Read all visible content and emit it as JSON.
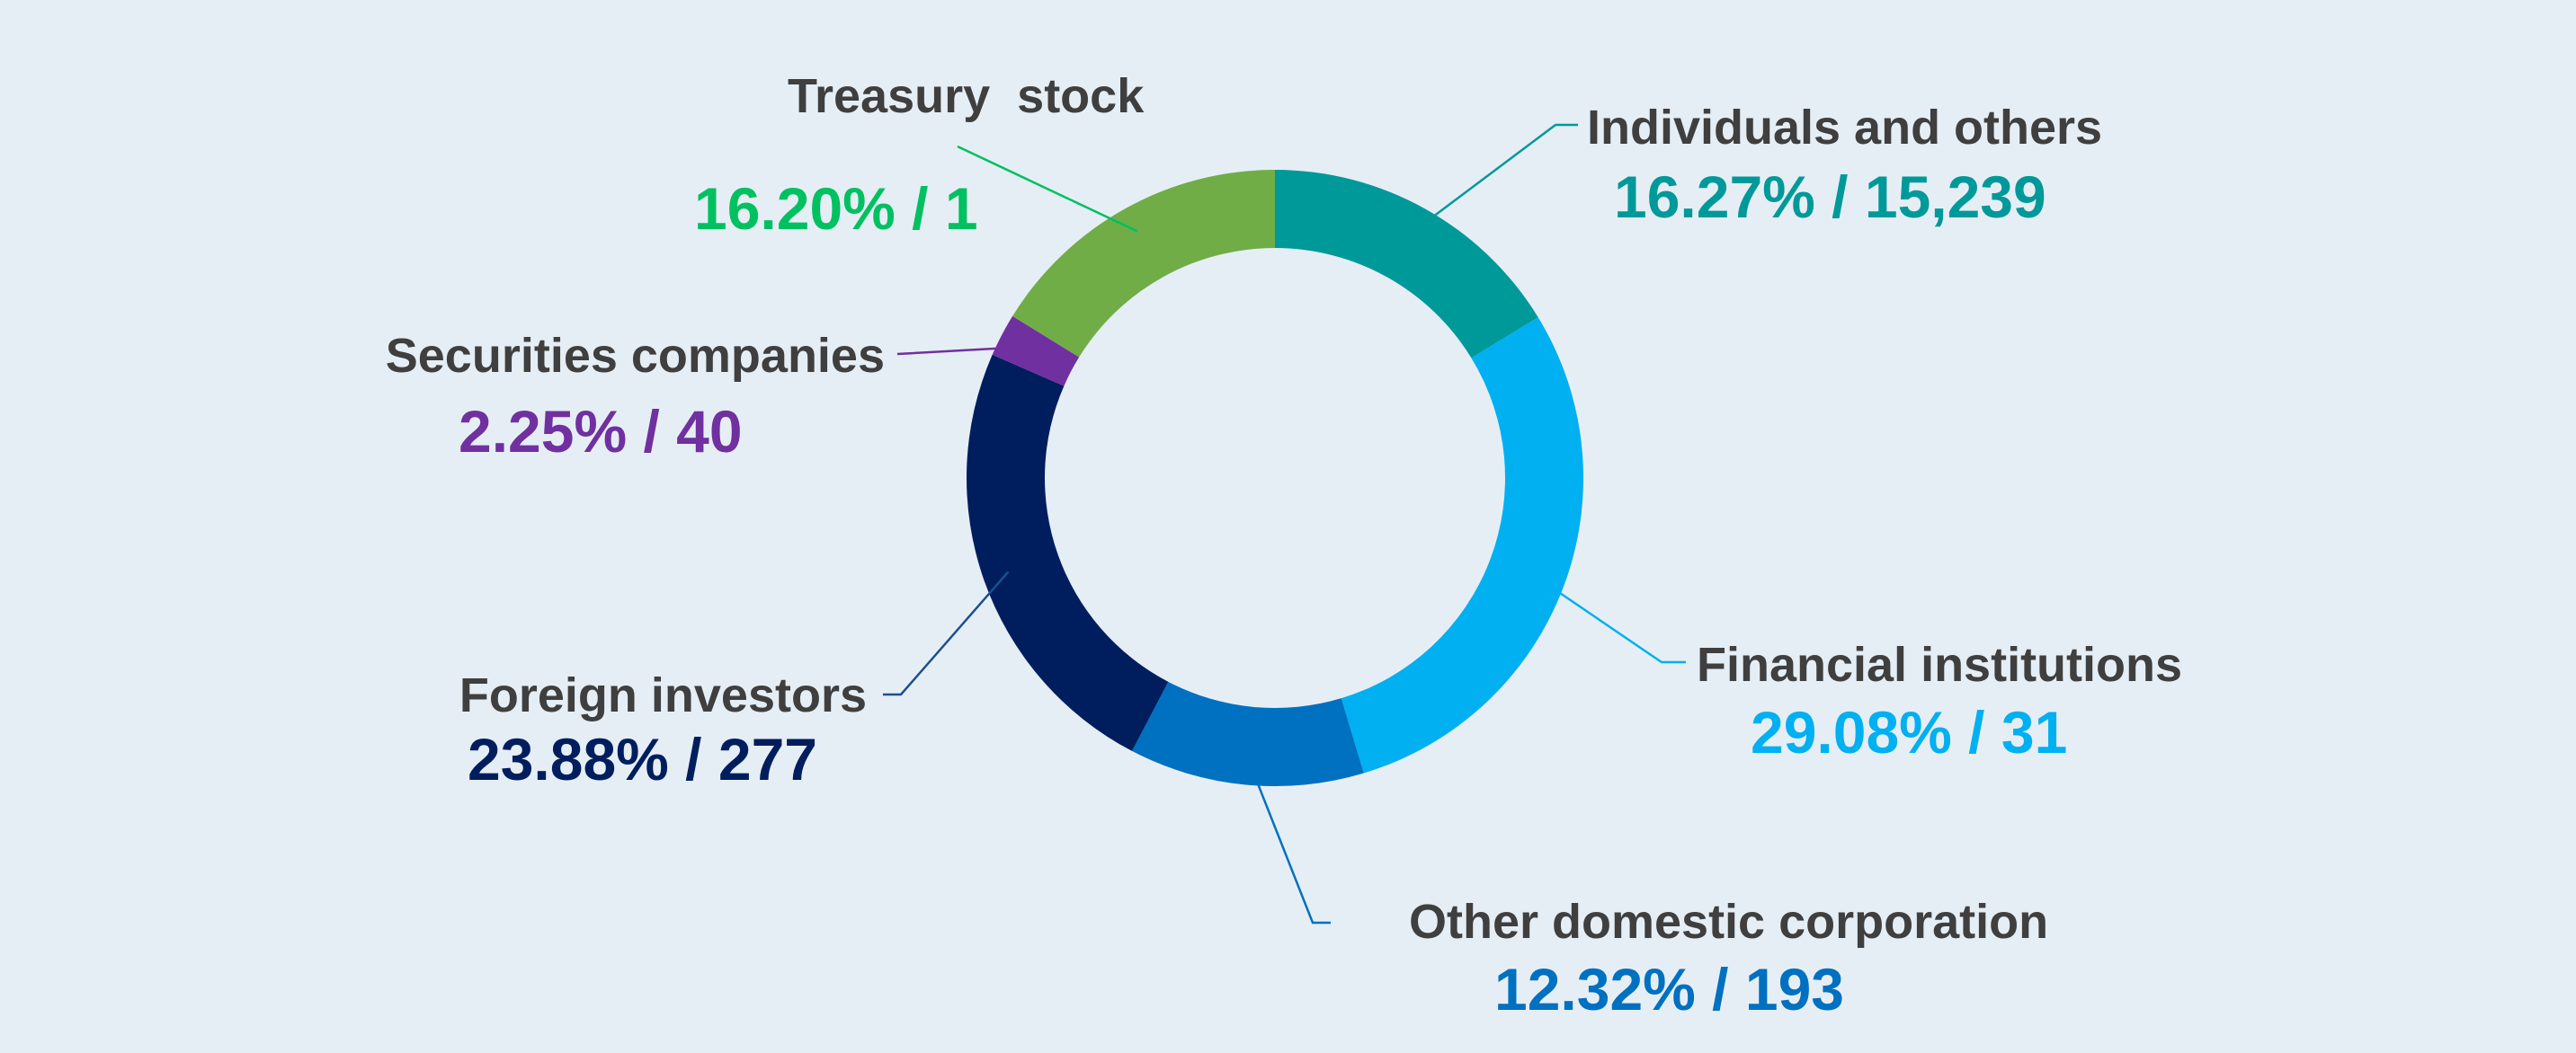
{
  "chart_data": {
    "type": "pie",
    "donut": true,
    "title": "",
    "legend": "none",
    "start": "top",
    "direction": "clockwise",
    "slices": [
      {
        "name": "Individuals and others",
        "percent": 16.27,
        "count": "15,239",
        "value_label": "16.27% / 15,239",
        "color": "#00999a",
        "label_color": "#00999a"
      },
      {
        "name": "Financial institutions",
        "percent": 29.08,
        "count": "31",
        "value_label": "29.08% / 31",
        "color": "#00b0f0",
        "label_color": "#00b0f0"
      },
      {
        "name": "Other domestic corporation",
        "percent": 12.32,
        "count": "193",
        "value_label": "12.32% / 193",
        "color": "#0070c0",
        "label_color": "#0070c0"
      },
      {
        "name": "Foreign investors",
        "percent": 23.88,
        "count": "277",
        "value_label": "23.88% / 277",
        "color": "#001e5e",
        "label_color": "#001e5e"
      },
      {
        "name": "Securities companies",
        "percent": 2.25,
        "count": "40",
        "value_label": "2.25% / 40",
        "color": "#7030a0",
        "label_color": "#7030a0"
      },
      {
        "name": "Treasury  stock",
        "percent": 16.2,
        "count": "1",
        "value_label": "16.20% / 1",
        "color": "#70ad47",
        "label_color": "#00c060"
      }
    ]
  }
}
